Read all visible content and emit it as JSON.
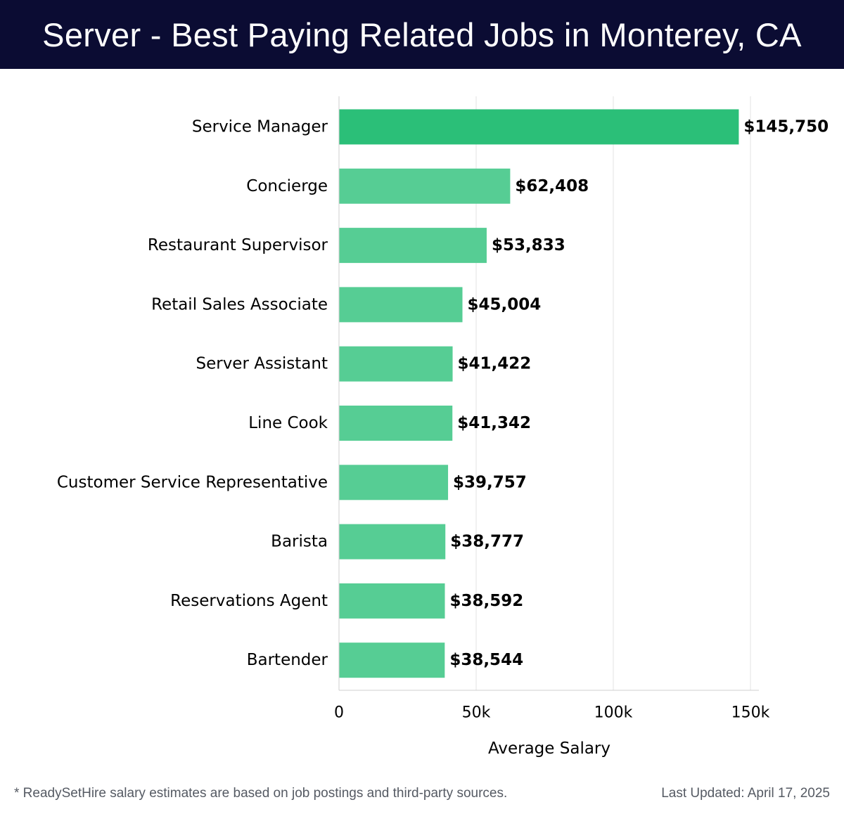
{
  "header": {
    "title": "Server - Best Paying Related Jobs in Monterey, CA"
  },
  "chart_data": {
    "type": "bar",
    "orientation": "horizontal",
    "title": "Server - Best Paying Related Jobs in Monterey, CA",
    "xlabel": "Average Salary",
    "ylabel": "",
    "xlim": [
      0,
      150000
    ],
    "xticks": [
      0,
      50000,
      100000,
      150000
    ],
    "xtick_labels": [
      "0",
      "50k",
      "100k",
      "150k"
    ],
    "grid": true,
    "categories": [
      "Service Manager",
      "Concierge",
      "Restaurant Supervisor",
      "Retail Sales Associate",
      "Server Assistant",
      "Line Cook",
      "Customer Service Representative",
      "Barista",
      "Reservations Agent",
      "Bartender"
    ],
    "values": [
      145750,
      62408,
      53833,
      45004,
      41422,
      41342,
      39757,
      38777,
      38592,
      38544
    ],
    "value_labels": [
      "$145,750",
      "$62,408",
      "$53,833",
      "$45,004",
      "$41,422",
      "$41,342",
      "$39,757",
      "$38,777",
      "$38,592",
      "$38,544"
    ],
    "colors": {
      "highlight": "#2bbf78",
      "bar": "#56cd94",
      "grid": "#e3e3e3",
      "axis": "#cfcfcf",
      "text": "#000000"
    }
  },
  "footer": {
    "note": "* ReadySetHire salary estimates are based on job postings and third-party sources.",
    "updated": "Last Updated: April 17, 2025"
  }
}
